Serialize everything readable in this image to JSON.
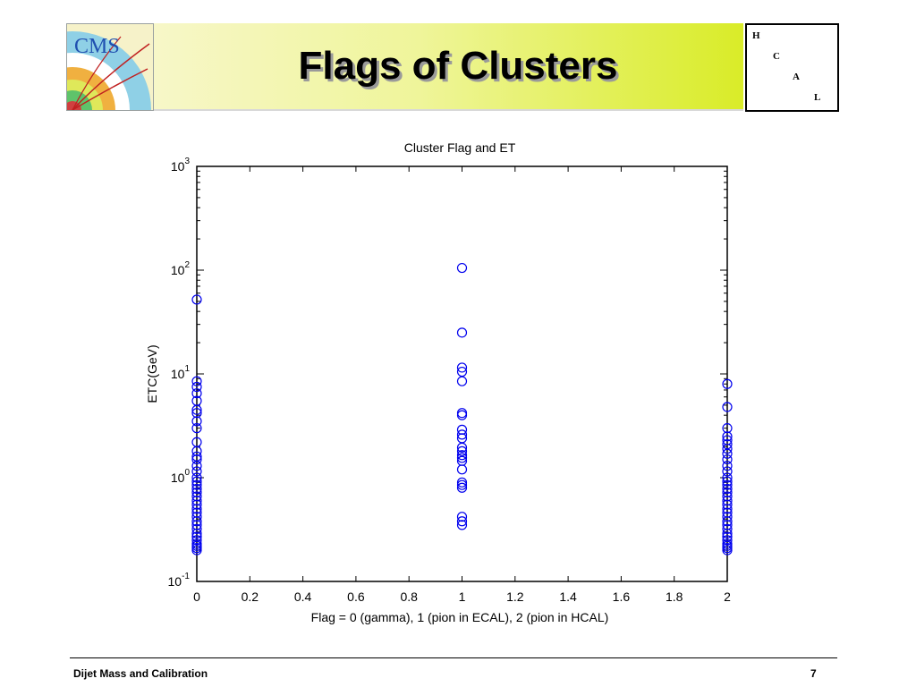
{
  "header": {
    "logo_text": "CMS",
    "title": "Flags of Clusters",
    "hcal_letters": [
      "H",
      "C",
      "A",
      "L"
    ]
  },
  "footer": {
    "left": "Dijet Mass and Calibration",
    "page_number": "7"
  },
  "colors": {
    "marker": "#0000ee",
    "axes": "#000000",
    "banner_left": "#f7f7c8",
    "banner_right": "#d9ec28"
  },
  "chart_data": {
    "type": "scatter",
    "title": "Cluster Flag and ET",
    "xlabel": "Flag = 0 (gamma), 1 (pion in ECAL), 2 (pion in HCAL)",
    "ylabel": "ETC(GeV)",
    "xlim": [
      0,
      2
    ],
    "ylim": [
      0.1,
      1000
    ],
    "yscale": "log",
    "xticks": [
      "0",
      "0.2",
      "0.4",
      "0.6",
      "0.8",
      "1",
      "1.2",
      "1.4",
      "1.6",
      "1.8",
      "2"
    ],
    "yticks": [
      {
        "base": "10",
        "exp": "-1"
      },
      {
        "base": "10",
        "exp": "0"
      },
      {
        "base": "10",
        "exp": "1"
      },
      {
        "base": "10",
        "exp": "2"
      },
      {
        "base": "10",
        "exp": "3"
      }
    ],
    "marker": "open-circle",
    "grid": false,
    "series": [
      {
        "x": 0,
        "y": [
          52,
          8.5,
          7.5,
          6.5,
          5.5,
          4.5,
          4.2,
          3.5,
          3.0,
          2.2,
          1.8,
          1.6,
          1.5,
          1.3,
          1.15,
          1.0,
          0.92,
          0.85,
          0.78,
          0.72,
          0.66,
          0.6,
          0.55,
          0.5,
          0.46,
          0.42,
          0.38,
          0.35,
          0.32,
          0.29,
          0.27,
          0.25,
          0.23,
          0.22,
          0.21,
          0.2
        ]
      },
      {
        "x": 1,
        "y": [
          105,
          25,
          11.5,
          10.5,
          8.5,
          4.2,
          4.0,
          2.9,
          2.6,
          2.4,
          1.95,
          1.8,
          1.65,
          1.55,
          1.45,
          1.2,
          0.9,
          0.85,
          0.8,
          0.42,
          0.38,
          0.35
        ]
      },
      {
        "x": 2,
        "y": [
          8.0,
          4.8,
          3.0,
          2.5,
          2.3,
          2.1,
          1.9,
          1.7,
          1.5,
          1.3,
          1.15,
          1.0,
          0.92,
          0.85,
          0.78,
          0.72,
          0.66,
          0.6,
          0.55,
          0.5,
          0.46,
          0.42,
          0.38,
          0.35,
          0.32,
          0.29,
          0.27,
          0.25,
          0.23,
          0.22,
          0.21,
          0.2
        ]
      }
    ]
  }
}
